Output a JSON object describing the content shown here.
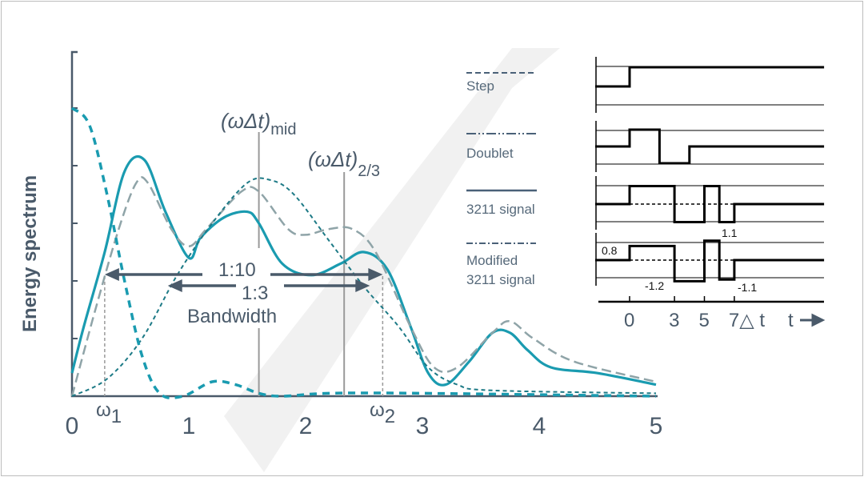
{
  "chart_data": {
    "type": "line",
    "xlabel": "",
    "ylabel": "Energy spectrum",
    "xlim": [
      0,
      5
    ],
    "ylim": [
      0,
      6
    ],
    "x_ticks": [
      "0",
      "1",
      "2",
      "3",
      "4",
      "5"
    ],
    "grid": false,
    "legend_placement": "right",
    "series": [
      {
        "name": "3211 signal",
        "style": "solid",
        "color": "#1a9bb0",
        "x": [
          0,
          0.1,
          0.28,
          0.45,
          0.62,
          0.8,
          1.0,
          1.1,
          1.3,
          1.5,
          1.6,
          1.8,
          2.05,
          2.3,
          2.5,
          2.7,
          2.9,
          3.05,
          3.2,
          3.4,
          3.6,
          3.75,
          3.9,
          4.1,
          4.5,
          5
        ],
        "y": [
          0.4,
          1.2,
          2.5,
          3.9,
          4.1,
          3.2,
          2.4,
          2.75,
          3.1,
          3.2,
          3.0,
          2.3,
          2.1,
          2.3,
          2.5,
          2.2,
          1.2,
          0.4,
          0.2,
          0.6,
          1.1,
          1.1,
          0.8,
          0.5,
          0.4,
          0.2
        ]
      },
      {
        "name": "Modified 3211 signal",
        "style": "long-dash",
        "color": "#8fa4a8",
        "x": [
          0,
          0.2,
          0.4,
          0.55,
          0.65,
          0.85,
          1.0,
          1.15,
          1.45,
          1.6,
          1.85,
          2.0,
          2.2,
          2.4,
          2.6,
          2.9,
          3.1,
          3.3,
          3.6,
          3.75,
          3.95,
          4.3,
          5
        ],
        "y": [
          0,
          1.5,
          2.9,
          3.7,
          3.7,
          2.9,
          2.6,
          2.9,
          3.55,
          3.55,
          2.9,
          2.8,
          2.9,
          2.9,
          2.5,
          1.2,
          0.5,
          0.5,
          1.1,
          1.3,
          1.0,
          0.6,
          0.25
        ]
      },
      {
        "name": "Doublet",
        "style": "short-dash",
        "color": "#1d7a86",
        "x": [
          0,
          0.3,
          0.6,
          0.9,
          1.2,
          1.5,
          1.7,
          1.9,
          2.2,
          2.5,
          2.8,
          3.05,
          3.3,
          3.6,
          5
        ],
        "y": [
          0,
          0.3,
          1.0,
          2.1,
          3.0,
          3.7,
          3.75,
          3.5,
          2.7,
          1.9,
          1.2,
          0.5,
          0.2,
          0.1,
          0.05
        ]
      },
      {
        "name": "Step",
        "style": "bold-dash",
        "color": "#1a9bb0",
        "x": [
          0,
          0.15,
          0.3,
          0.45,
          0.6,
          0.75,
          0.95,
          1.2,
          1.4,
          1.6,
          1.8,
          2.2,
          3,
          5
        ],
        "y": [
          5.0,
          4.7,
          3.5,
          2.0,
          0.7,
          0.05,
          0,
          0.25,
          0.2,
          0.05,
          0,
          0.05,
          0.05,
          0
        ]
      }
    ],
    "annotations": {
      "omega1": {
        "base": "ω",
        "sub": "1",
        "x": 0.28
      },
      "omega2": {
        "base": "ω",
        "sub": "2",
        "x": 2.66
      },
      "mid": {
        "base": "(ωΔt)",
        "sub": "mid",
        "x": 1.6
      },
      "two_thirds": {
        "base": "(ωΔt)",
        "sub": "2/3",
        "x": 2.33
      },
      "ratio_10": "1:10",
      "ratio_3": "1:3",
      "bandwidth": "Bandwidth"
    },
    "inset": {
      "time_ticks": [
        {
          "t": 0,
          "label": "0"
        },
        {
          "t": 3,
          "label": "3"
        },
        {
          "t": 5,
          "label": "5"
        },
        {
          "t": 7,
          "label": "7△ t"
        }
      ],
      "time_label": "t",
      "signals": [
        {
          "name": "Step",
          "t": [
            -2.3,
            0,
            0,
            13
          ],
          "v": [
            0,
            0,
            1,
            1
          ]
        },
        {
          "name": "Doublet",
          "t": [
            -2.3,
            0,
            0,
            2,
            2,
            4,
            4,
            13
          ],
          "v": [
            0,
            0,
            1,
            1,
            -1,
            -1,
            0,
            0
          ]
        },
        {
          "name": "3211 signal",
          "t": [
            -2.3,
            0,
            0,
            3,
            3,
            5,
            5,
            6,
            6,
            7,
            7,
            13
          ],
          "v": [
            0,
            0,
            1,
            1,
            -1,
            -1,
            1,
            1,
            -1,
            -1,
            0,
            0
          ]
        },
        {
          "name": "Modified 3211 signal",
          "t": [
            -2.3,
            0,
            0,
            3,
            3,
            5,
            5,
            6,
            6,
            7,
            7,
            13
          ],
          "v": [
            0,
            0,
            0.8,
            0.8,
            -1.2,
            -1.2,
            1.1,
            1.1,
            -1.1,
            -1.1,
            0,
            0
          ]
        }
      ],
      "value_labels": [
        "0.8",
        "-1.2",
        "1.1",
        "-1.1"
      ]
    },
    "legend": [
      {
        "label": "Step"
      },
      {
        "label": "Doublet"
      },
      {
        "label": "3211 signal"
      },
      {
        "label": "Modified",
        "label2": "3211 signal"
      }
    ]
  }
}
